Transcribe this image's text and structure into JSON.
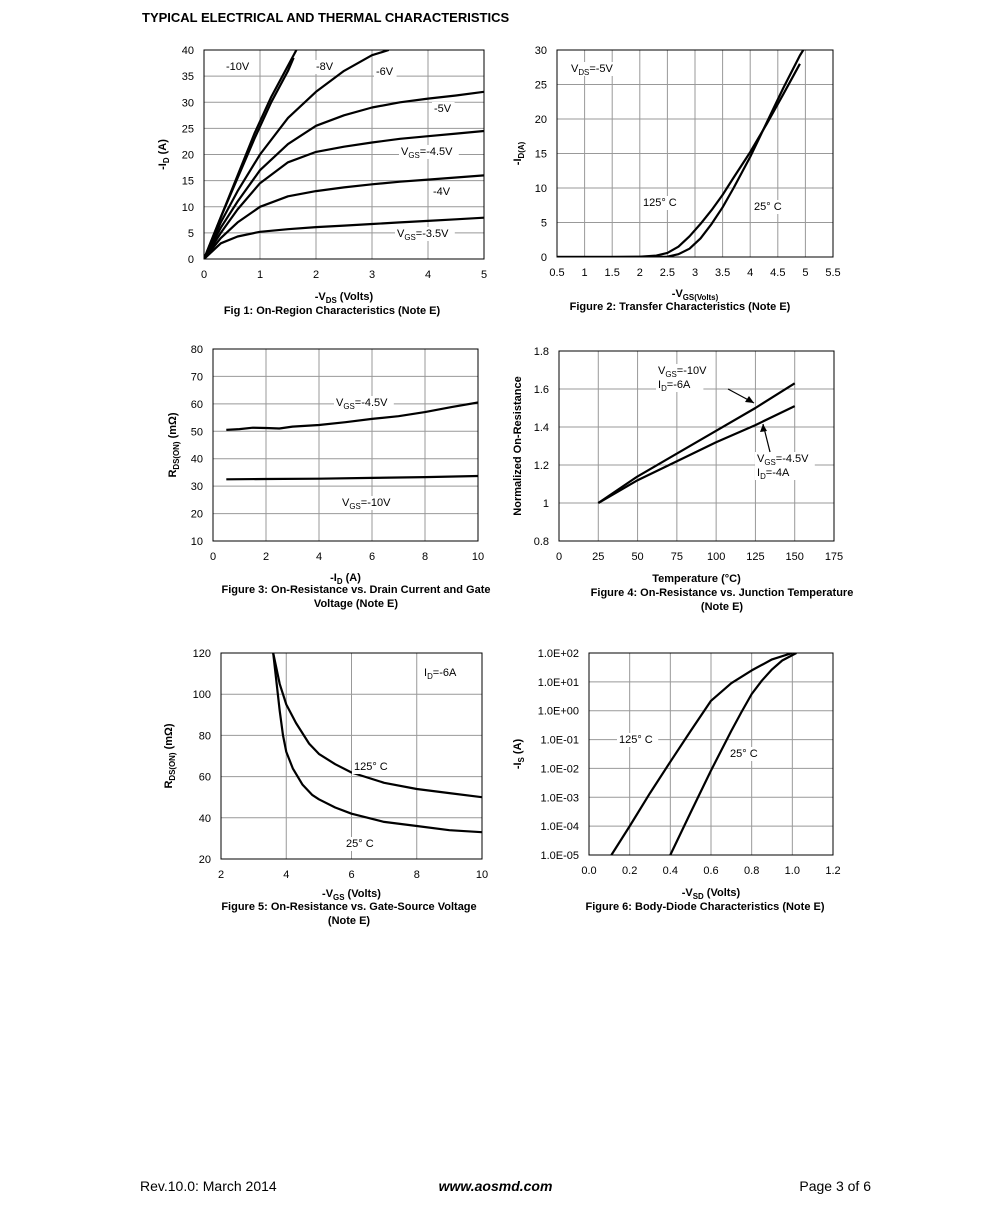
{
  "page": {
    "title": "TYPICAL ELECTRICAL AND THERMAL CHARACTERISTICS",
    "footer_left": "Rev.10.0: March 2014",
    "footer_center": "www.aosmd.com",
    "footer_right": "Page 3 of 6"
  },
  "chart_data": [
    {
      "type": "line",
      "caption": "Fig 1: On-Region Characteristics (Note E)",
      "xlabel": "-V_DS (Volts)",
      "ylabel": "-I_D (A)",
      "xlim": [
        0,
        5
      ],
      "ylim": [
        0,
        40
      ],
      "xticks": [
        "0",
        "1",
        "2",
        "3",
        "4",
        "5"
      ],
      "yticks": [
        "0",
        "5",
        "10",
        "15",
        "20",
        "25",
        "30",
        "35",
        "40"
      ],
      "grid": true,
      "series": [
        {
          "name": "-10V",
          "x": [
            0,
            0.3,
            0.6,
            0.9,
            1.2,
            1.5,
            1.65
          ],
          "y": [
            0,
            8,
            16,
            24,
            31,
            37,
            40
          ]
        },
        {
          "name": "-8V",
          "x": [
            0,
            0.3,
            0.6,
            0.9,
            1.2,
            1.5,
            1.6
          ],
          "y": [
            0,
            8,
            15.5,
            23,
            30,
            36,
            38.5
          ]
        },
        {
          "name": "-6V",
          "x": [
            0,
            0.3,
            0.6,
            1,
            1.5,
            2,
            2.5,
            3,
            3.3
          ],
          "y": [
            0,
            7,
            13,
            20,
            27,
            32,
            36,
            39,
            40
          ]
        },
        {
          "name": "-5V",
          "x": [
            0,
            0.3,
            0.6,
            1,
            1.5,
            2,
            2.5,
            3,
            3.5,
            4,
            4.5,
            5
          ],
          "y": [
            0,
            6,
            11,
            17,
            22,
            25.5,
            27.5,
            29,
            30,
            30.7,
            31.3,
            32
          ]
        },
        {
          "name": "V_GS=-4.5V",
          "x": [
            0,
            0.3,
            0.6,
            1,
            1.5,
            2,
            2.5,
            3,
            3.5,
            4,
            4.5,
            5
          ],
          "y": [
            0,
            5,
            9.5,
            14.5,
            18.5,
            20.5,
            21.5,
            22.3,
            23,
            23.5,
            24,
            24.5
          ]
        },
        {
          "name": "-4V",
          "x": [
            0,
            0.3,
            0.6,
            1,
            1.5,
            2,
            2.5,
            3,
            3.5,
            4,
            4.5,
            5
          ],
          "y": [
            0,
            4,
            7,
            10,
            12,
            13,
            13.7,
            14.3,
            14.8,
            15.2,
            15.6,
            16
          ]
        },
        {
          "name": "V_GS=-3.5V",
          "x": [
            0,
            0.3,
            0.6,
            1,
            1.5,
            2,
            2.5,
            3,
            3.5,
            4,
            4.5,
            5
          ],
          "y": [
            0,
            3,
            4.3,
            5.2,
            5.7,
            6.1,
            6.4,
            6.7,
            7,
            7.3,
            7.6,
            7.9
          ]
        }
      ],
      "annotations": [
        "-10V",
        "-8V",
        "-6V",
        "-5V",
        "V_GS=-4.5V",
        "-4V",
        "V_GS=-3.5V"
      ]
    },
    {
      "type": "line",
      "caption": "Figure 2: Transfer Characteristics (Note E)",
      "xlabel": "-V_GS(Volts)",
      "ylabel": "-I_D(A)",
      "xlim": [
        0.5,
        5.5
      ],
      "ylim": [
        0,
        30
      ],
      "xticks": [
        "0.5",
        "1",
        "1.5",
        "2",
        "2.5",
        "3",
        "3.5",
        "4",
        "4.5",
        "5",
        "5.5"
      ],
      "yticks": [
        "0",
        "5",
        "10",
        "15",
        "20",
        "25",
        "30"
      ],
      "grid": true,
      "series": [
        {
          "name": "125° C",
          "x": [
            0.5,
            1,
            1.5,
            2,
            2.3,
            2.5,
            2.7,
            2.9,
            3.1,
            3.3,
            3.5,
            3.7,
            4,
            4.3,
            4.6,
            4.9
          ],
          "y": [
            0,
            0,
            0,
            0.05,
            0.2,
            0.6,
            1.5,
            3,
            4.8,
            6.8,
            9,
            11.5,
            15.2,
            19.3,
            23.6,
            28
          ]
        },
        {
          "name": "25° C",
          "x": [
            0.5,
            1,
            1.5,
            2,
            2.5,
            2.7,
            2.9,
            3.1,
            3.3,
            3.5,
            3.7,
            4,
            4.3,
            4.6,
            4.9,
            5
          ],
          "y": [
            0,
            0,
            0,
            0,
            0.05,
            0.4,
            1.2,
            2.7,
            4.8,
            7.2,
            10,
            14.5,
            19.5,
            24.5,
            29.2,
            30.5
          ]
        }
      ],
      "annotations": [
        "V_DS=-5V",
        "125° C",
        "25° C"
      ]
    },
    {
      "type": "line",
      "caption": "Figure 3: On-Resistance vs. Drain Current and Gate Voltage (Note E)",
      "xlabel": "-I_D (A)",
      "ylabel": "R_DS(ON) (mΩ)",
      "xlim": [
        0,
        10
      ],
      "ylim": [
        10,
        80
      ],
      "xticks": [
        "0",
        "2",
        "4",
        "6",
        "8",
        "10"
      ],
      "yticks": [
        "10",
        "20",
        "30",
        "40",
        "50",
        "60",
        "70",
        "80"
      ],
      "grid": true,
      "series": [
        {
          "name": "V_GS=-4.5V",
          "x": [
            0.5,
            1,
            1.5,
            2,
            2.5,
            3,
            4,
            5,
            6,
            7,
            8,
            9,
            10
          ],
          "y": [
            50.5,
            50.8,
            51.3,
            51.2,
            51,
            51.7,
            52.3,
            53.3,
            54.5,
            55.5,
            57,
            58.8,
            60.5
          ]
        },
        {
          "name": "V_GS=-10V",
          "x": [
            0.5,
            2,
            4,
            6,
            8,
            10
          ],
          "y": [
            32.5,
            32.6,
            32.7,
            33,
            33.3,
            33.7
          ]
        }
      ],
      "annotations": [
        "V_GS=-4.5V",
        "V_GS=-10V"
      ]
    },
    {
      "type": "line",
      "caption": "Figure 4: On-Resistance vs. Junction Temperature (Note E)",
      "xlabel": "Temperature (°C)",
      "ylabel": "Normalized On-Resistance",
      "xlim": [
        0,
        175
      ],
      "ylim": [
        0.8,
        1.8
      ],
      "xticks": [
        "0",
        "25",
        "50",
        "75",
        "100",
        "125",
        "150",
        "175"
      ],
      "yticks": [
        "0.8",
        "1",
        "1.2",
        "1.4",
        "1.6",
        "1.8"
      ],
      "grid": true,
      "series": [
        {
          "name": "V_GS=-10V, I_D=-6A",
          "x": [
            25,
            50,
            75,
            100,
            125,
            150
          ],
          "y": [
            1,
            1.14,
            1.26,
            1.38,
            1.5,
            1.63
          ]
        },
        {
          "name": "V_GS=-4.5V, I_D=-4A",
          "x": [
            25,
            50,
            75,
            100,
            125,
            150
          ],
          "y": [
            1,
            1.12,
            1.22,
            1.32,
            1.41,
            1.51
          ]
        }
      ],
      "annotations": [
        "V_GS=-10V",
        "I_D=-6A",
        "V_GS=-4.5V",
        "I_D=-4A"
      ]
    },
    {
      "type": "line",
      "caption": "Figure 5: On-Resistance vs. Gate-Source Voltage (Note E)",
      "xlabel": "-V_GS (Volts)",
      "ylabel": "R_DS(ON) (mΩ)",
      "xlim": [
        2,
        10
      ],
      "ylim": [
        20,
        120
      ],
      "xticks": [
        "2",
        "4",
        "6",
        "8",
        "10"
      ],
      "yticks": [
        "20",
        "40",
        "60",
        "80",
        "100",
        "120"
      ],
      "grid": true,
      "series": [
        {
          "name": "125° C",
          "x": [
            3.6,
            3.8,
            4,
            4.3,
            4.7,
            5,
            5.5,
            6,
            7,
            8,
            9,
            10
          ],
          "y": [
            120,
            105,
            95,
            86,
            76,
            71,
            66,
            62,
            57,
            54,
            52,
            50
          ]
        },
        {
          "name": "25° C",
          "x": [
            3.6,
            3.8,
            3.9,
            4,
            4.2,
            4.5,
            4.8,
            5,
            5.5,
            6,
            7,
            8,
            9,
            10
          ],
          "y": [
            120,
            92,
            80,
            72,
            64,
            56,
            51,
            49,
            45,
            42,
            38,
            36,
            34,
            33
          ]
        }
      ],
      "annotations": [
        "I_D=-6A",
        "125° C",
        "25° C"
      ]
    },
    {
      "type": "line",
      "caption": "Figure 6: Body-Diode Characteristics (Note E)",
      "xlabel": "-V_SD (Volts)",
      "ylabel": "-I_S (A)",
      "xlim": [
        0,
        1.2
      ],
      "ylim": [
        -5,
        2
      ],
      "yscale": "log",
      "xticks": [
        "0.0",
        "0.2",
        "0.4",
        "0.6",
        "0.8",
        "1.0",
        "1.2"
      ],
      "yticks": [
        "1.0E-05",
        "1.0E-04",
        "1.0E-03",
        "1.0E-02",
        "1.0E-01",
        "1.0E+00",
        "1.0E+01",
        "1.0E+02"
      ],
      "grid": true,
      "series": [
        {
          "name": "125° C",
          "x": [
            0.11,
            0.2,
            0.3,
            0.4,
            0.5,
            0.6,
            0.7,
            0.8,
            0.9,
            1.0
          ],
          "y": [
            1e-05,
            0.0001,
            0.0014,
            0.017,
            0.2,
            2.2,
            9,
            25,
            60,
            100
          ]
        },
        {
          "name": "25° C",
          "x": [
            0.4,
            0.5,
            0.6,
            0.7,
            0.75,
            0.8,
            0.85,
            0.9,
            0.95,
            1.02
          ],
          "y": [
            1e-05,
            0.0003,
            0.0085,
            0.2,
            0.9,
            3.8,
            11,
            27,
            55,
            100
          ]
        }
      ],
      "annotations": [
        "125° C",
        "25° C"
      ]
    }
  ]
}
